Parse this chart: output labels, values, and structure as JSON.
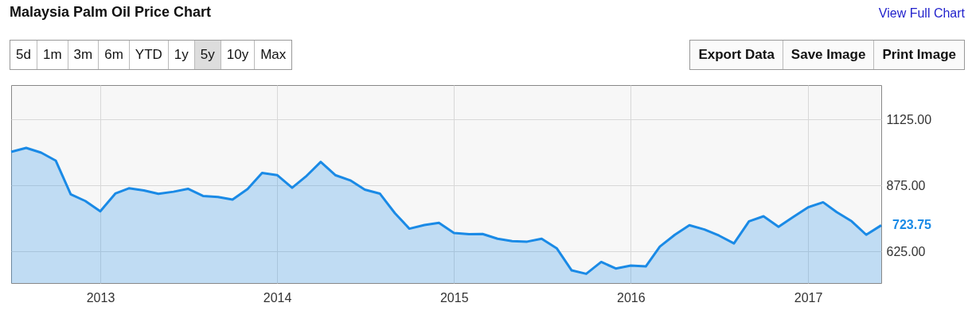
{
  "chart_data": {
    "type": "area",
    "title": "Malaysia Palm Oil Price Chart",
    "annotations": [
      "View Full Chart",
      "5d",
      "1m",
      "3m",
      "6m",
      "YTD",
      "1y",
      "5y",
      "10y",
      "Max",
      "Export Data",
      "Save Image",
      "Print Image",
      {
        "text": "723.75",
        "x": "2017-06",
        "y": 723.75
      }
    ],
    "x": [
      "2012-07",
      "2012-08",
      "2012-09",
      "2012-10",
      "2012-11",
      "2012-12",
      "2013-01",
      "2013-02",
      "2013-03",
      "2013-04",
      "2013-05",
      "2013-06",
      "2013-07",
      "2013-08",
      "2013-09",
      "2013-10",
      "2013-11",
      "2013-12",
      "2014-01",
      "2014-02",
      "2014-03",
      "2014-04",
      "2014-05",
      "2014-06",
      "2014-07",
      "2014-08",
      "2014-09",
      "2014-10",
      "2014-11",
      "2014-12",
      "2015-01",
      "2015-02",
      "2015-03",
      "2015-04",
      "2015-05",
      "2015-06",
      "2015-07",
      "2015-08",
      "2015-09",
      "2015-10",
      "2015-11",
      "2015-12",
      "2016-01",
      "2016-02",
      "2016-03",
      "2016-04",
      "2016-05",
      "2016-06",
      "2016-07",
      "2016-08",
      "2016-09",
      "2016-10",
      "2016-11",
      "2016-12",
      "2017-01",
      "2017-02",
      "2017-03",
      "2017-04",
      "2017-05",
      "2017-06"
    ],
    "series": [
      {
        "color": "#1a8ae6",
        "values": [
          1002,
          1017,
          999,
          969,
          841,
          816,
          777,
          844,
          864,
          856,
          843,
          851,
          862,
          835,
          831,
          821,
          861,
          922,
          914,
          866,
          908,
          964,
          914,
          894,
          859,
          844,
          770,
          711,
          725,
          733,
          695,
          690,
          691,
          673,
          664,
          662,
          673,
          637,
          553,
          540,
          585,
          560,
          571,
          568,
          643,
          688,
          724,
          708,
          685,
          655,
          739,
          758,
          718,
          755,
          792,
          811,
          774,
          739,
          688,
          723.75
        ]
      }
    ],
    "xlim": [
      "2012-07",
      "2017-06"
    ],
    "xticks": [
      "2013",
      "2014",
      "2015",
      "2016",
      "2017"
    ],
    "ylim": [
      505,
      1255
    ],
    "yticks": [
      {
        "value": 625,
        "label": "625.00"
      },
      {
        "value": 875,
        "label": "875.00"
      },
      {
        "value": 1125,
        "label": "1125.00"
      }
    ],
    "grid": true,
    "marker": "none"
  }
}
